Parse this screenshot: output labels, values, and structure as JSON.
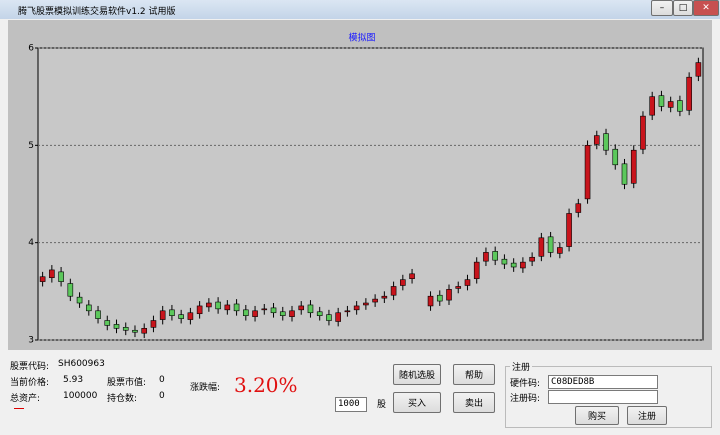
{
  "window": {
    "title": "腾飞股票模拟训练交易软件v1.2 试用版"
  },
  "info": {
    "stock_code_label": "股票代码:",
    "stock_code": "SH600963",
    "price_label": "当前价格:",
    "price": "5.93",
    "market_value_label": "股票市值:",
    "market_value": "0",
    "total_label": "总资产:",
    "total": "100000",
    "holdings_label": "持仓数:",
    "holdings": "0",
    "change_label": "涨跌幅:",
    "change": "3.20%"
  },
  "controls": {
    "random": "随机选股",
    "help": "帮助",
    "quantity": "1000",
    "unit": "股",
    "buy": "买入",
    "sell": "卖出"
  },
  "registration": {
    "group": "注册",
    "hw_label": "硬件码:",
    "hw_code": "C08DED8B",
    "reg_label": "注册码:",
    "purchase": "购买",
    "register": "注册"
  },
  "chart_data": {
    "type": "candlestick",
    "title": "模拟图",
    "open": [
      3.6,
      3.64,
      3.7,
      3.58,
      3.44,
      3.36,
      3.3,
      3.2,
      3.16,
      3.13,
      3.1,
      3.07,
      3.13,
      3.21,
      3.31,
      3.26,
      3.21,
      3.27,
      3.34,
      3.39,
      3.31,
      3.37,
      3.31,
      3.24,
      3.31,
      3.33,
      3.29,
      3.24,
      3.31,
      3.36,
      3.29,
      3.26,
      3.19,
      3.29,
      3.31,
      3.36,
      3.39,
      3.43,
      3.46,
      3.56,
      3.63,
      null,
      3.35,
      3.46,
      3.41,
      3.53,
      3.56,
      3.63,
      3.81,
      3.91,
      3.83,
      3.79,
      3.74,
      3.81,
      3.86,
      4.06,
      3.89,
      3.96,
      4.31,
      4.45,
      5.01,
      5.12,
      4.96,
      4.81,
      4.61,
      4.96,
      5.31,
      5.51,
      5.39,
      5.46,
      5.36,
      5.71
    ],
    "high": [
      3.7,
      3.77,
      3.75,
      3.63,
      3.49,
      3.41,
      3.35,
      3.25,
      3.21,
      3.18,
      3.15,
      3.17,
      3.25,
      3.35,
      3.36,
      3.31,
      3.33,
      3.4,
      3.43,
      3.44,
      3.41,
      3.42,
      3.36,
      3.35,
      3.37,
      3.38,
      3.34,
      3.35,
      3.4,
      3.41,
      3.34,
      3.31,
      3.33,
      3.35,
      3.4,
      3.43,
      3.47,
      3.5,
      3.6,
      3.67,
      3.73,
      null,
      3.5,
      3.51,
      3.57,
      3.6,
      3.67,
      3.85,
      3.95,
      3.96,
      3.88,
      3.84,
      3.85,
      3.9,
      4.1,
      4.11,
      4.0,
      4.35,
      4.45,
      5.05,
      5.15,
      5.17,
      5.01,
      4.86,
      5.0,
      5.35,
      5.55,
      5.56,
      5.5,
      5.51,
      5.75,
      5.9
    ],
    "low": [
      3.55,
      3.59,
      3.55,
      3.4,
      3.33,
      3.25,
      3.17,
      3.1,
      3.07,
      3.05,
      3.03,
      3.02,
      3.08,
      3.16,
      3.2,
      3.17,
      3.16,
      3.22,
      3.29,
      3.27,
      3.26,
      3.25,
      3.2,
      3.19,
      3.26,
      3.23,
      3.2,
      3.19,
      3.26,
      3.23,
      3.2,
      3.15,
      3.14,
      3.24,
      3.26,
      3.31,
      3.34,
      3.38,
      3.41,
      3.51,
      3.58,
      null,
      3.3,
      3.35,
      3.36,
      3.48,
      3.51,
      3.58,
      3.76,
      3.77,
      3.73,
      3.7,
      3.69,
      3.76,
      3.81,
      3.85,
      3.84,
      3.91,
      4.26,
      4.4,
      4.96,
      4.9,
      4.75,
      4.55,
      4.56,
      4.91,
      5.26,
      5.35,
      5.34,
      5.3,
      5.31,
      5.66
    ],
    "close": [
      3.65,
      3.72,
      3.6,
      3.45,
      3.38,
      3.3,
      3.22,
      3.15,
      3.12,
      3.1,
      3.08,
      3.12,
      3.2,
      3.3,
      3.25,
      3.22,
      3.28,
      3.35,
      3.38,
      3.32,
      3.36,
      3.3,
      3.25,
      3.3,
      3.32,
      3.28,
      3.25,
      3.3,
      3.35,
      3.28,
      3.25,
      3.2,
      3.28,
      3.3,
      3.35,
      3.38,
      3.42,
      3.45,
      3.55,
      3.62,
      3.68,
      null,
      3.45,
      3.4,
      3.52,
      3.55,
      3.62,
      3.8,
      3.9,
      3.82,
      3.78,
      3.75,
      3.8,
      3.85,
      4.05,
      3.9,
      3.95,
      4.3,
      4.4,
      5.0,
      5.1,
      4.95,
      4.8,
      4.6,
      4.95,
      5.3,
      5.5,
      5.4,
      5.45,
      5.35,
      5.7,
      5.85
    ],
    "up_color": "#c8141c",
    "down_color": "#5cc85c",
    "ylim": [
      3,
      6
    ],
    "yticks": [
      3,
      4,
      5,
      6
    ],
    "grid": true
  }
}
